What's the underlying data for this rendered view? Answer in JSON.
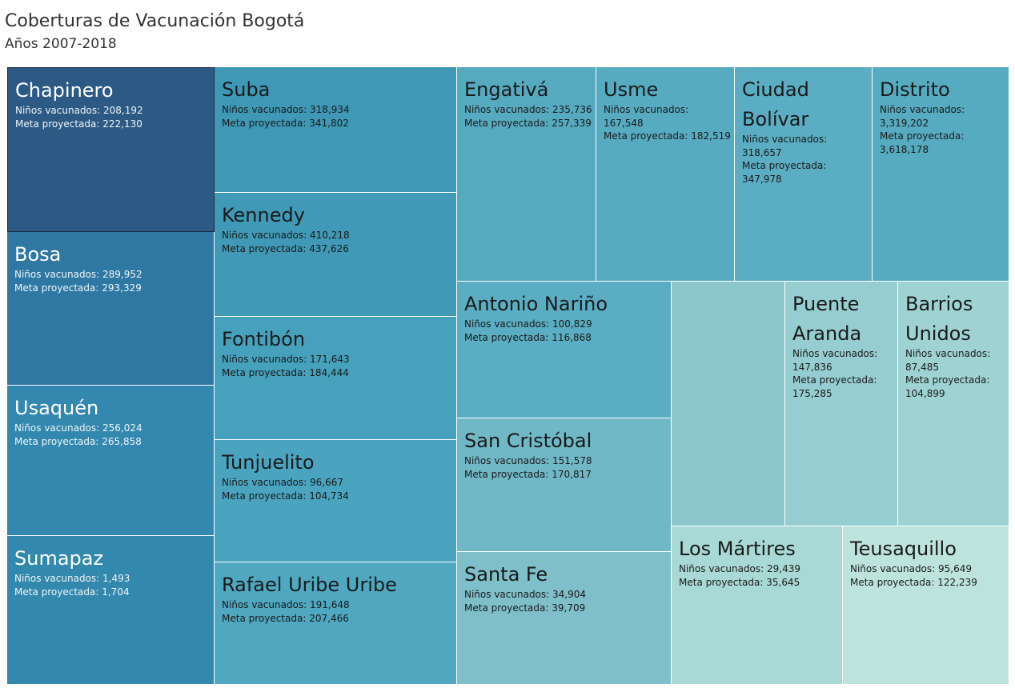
{
  "title": "Coberturas de Vacunación Bogotá",
  "subtitle": "Años 2007-2018",
  "chart_data": {
    "type": "treemap",
    "size_measure": "Meta proyectada",
    "label_vaccinated": "Niños vacunados",
    "label_target": "Meta proyectada",
    "items": [
      {
        "name": "Chapinero",
        "vaccinated": "208,192",
        "target": "222,130",
        "color": "#2c5a85",
        "selected": true
      },
      {
        "name": "Bosa",
        "vaccinated": "289,952",
        "target": "293,329",
        "color": "#2f78a3"
      },
      {
        "name": "Usaquén",
        "vaccinated": "256,024",
        "target": "265,858",
        "color": "#3288ae"
      },
      {
        "name": "Sumapaz",
        "vaccinated": "1,493",
        "target": "1,704",
        "color": "#3388ad"
      },
      {
        "name": "Suba",
        "vaccinated": "318,934",
        "target": "341,802",
        "color": "#3e98b6"
      },
      {
        "name": "Kennedy",
        "vaccinated": "410,218",
        "target": "437,626",
        "color": "#3f99b7"
      },
      {
        "name": "Fontibón",
        "vaccinated": "171,643",
        "target": "184,444",
        "color": "#46a1bd"
      },
      {
        "name": "Tunjuelito",
        "vaccinated": "96,667",
        "target": "104,734",
        "color": "#4aa4bf"
      },
      {
        "name": "Rafael Uribe Uribe",
        "vaccinated": "191,648",
        "target": "207,466",
        "color": "#4fa7c0"
      },
      {
        "name": "Engativá",
        "vaccinated": "235,736",
        "target": "257,339",
        "color": "#56aac0"
      },
      {
        "name": "Usme",
        "vaccinated": "167,548",
        "target": "182,519",
        "color": "#57abc1"
      },
      {
        "name": "Ciudad Bolívar",
        "vaccinated": "318,657",
        "target": "347,978",
        "color": "#5aadc2"
      },
      {
        "name": "Distrito",
        "vaccinated": "3,319,202",
        "target": "3,618,178",
        "color": "#57abc1"
      },
      {
        "name": "Antonio Nariño",
        "vaccinated": "100,829",
        "target": "116,868",
        "color": "#5aadc2"
      },
      {
        "name": "San Cristóbal",
        "vaccinated": "151,578",
        "target": "170,817",
        "color": "#71b8c6"
      },
      {
        "name": "Santa Fe",
        "vaccinated": "34,904",
        "target": "39,709",
        "color": "#7ebfca"
      },
      {
        "name": "",
        "vaccinated": "",
        "target": "",
        "color": "#8cc7cc"
      },
      {
        "name": "Puente Aranda",
        "vaccinated": "147,836",
        "target": "175,285",
        "color": "#96cdd0"
      },
      {
        "name": "Barrios Unidos",
        "vaccinated": "87,485",
        "target": "104,899",
        "color": "#9fd3d3"
      },
      {
        "name": "Los Mártires",
        "vaccinated": "29,439",
        "target": "35,645",
        "color": "#a9d9d6"
      },
      {
        "name": "Teusaquillo",
        "vaccinated": "95,649",
        "target": "122,239",
        "color": "#bde4dc"
      }
    ]
  }
}
